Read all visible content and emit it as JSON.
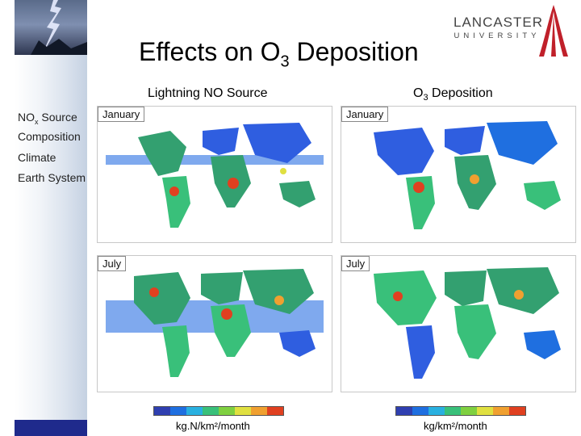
{
  "slide": {
    "title_main": "Effects on O",
    "title_sub": "3",
    "title_rest": " Deposition"
  },
  "logo": {
    "line1": "LANCASTER",
    "line2": "UNIVERSITY"
  },
  "columns": {
    "left_header": "Lightning NO Source",
    "right_header_main": "O",
    "right_header_sub": "3",
    "right_header_rest": " Deposition"
  },
  "sidebar_labels": {
    "nox_main": "NO",
    "nox_sub": "x",
    "nox_rest": " Source",
    "composition": "Composition",
    "climate": "Climate",
    "earth_system": "Earth System"
  },
  "panels": {
    "top_left": "January",
    "top_right": "January",
    "bottom_left": "July",
    "bottom_right": "July"
  },
  "units": {
    "left": "kg.N/km²/month",
    "right": "kg/km²/month"
  },
  "colors": {
    "map_scale": [
      "#2f3fb0",
      "#1f6fe0",
      "#29b0e0",
      "#39c07a",
      "#7fd040",
      "#e0e040",
      "#f0a030",
      "#e04020"
    ],
    "land": "#33a070",
    "ocean_low": "#2f5ee0",
    "sidebar_band": "#1f2a8c",
    "logo_red": "#c0202a"
  }
}
